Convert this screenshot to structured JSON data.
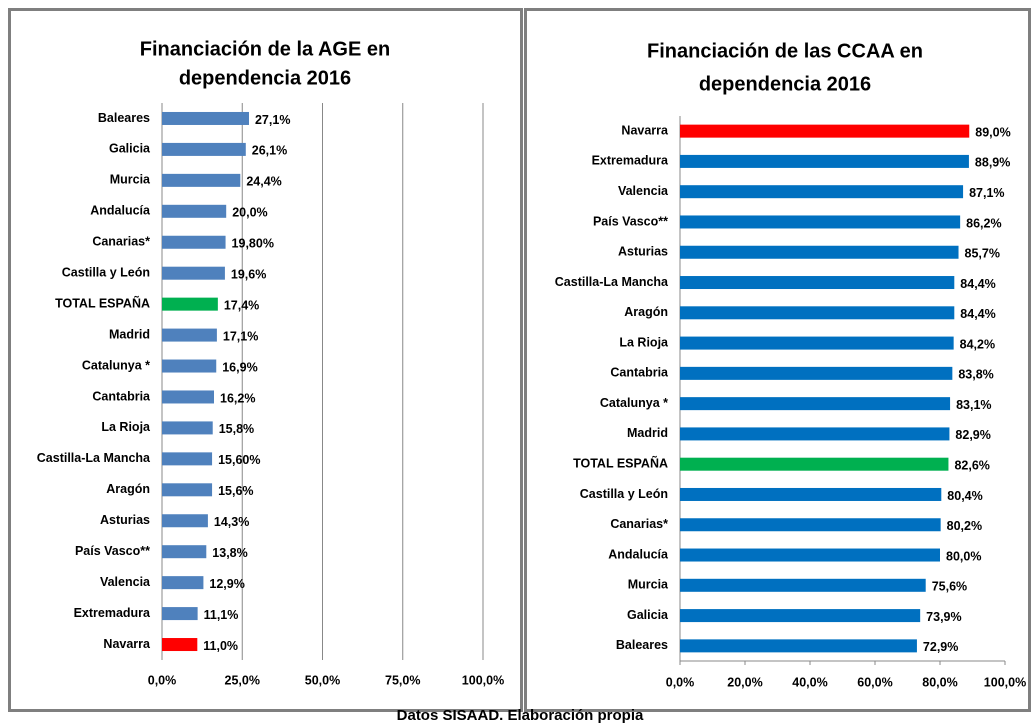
{
  "chart_data": [
    {
      "type": "bar",
      "orientation": "horizontal",
      "title": [
        "Financiación de la  AGE en",
        "dependencia 2016"
      ],
      "categories": [
        "Baleares",
        "Galicia",
        "Murcia",
        "Andalucía",
        "Canarias*",
        "Castilla y León",
        "TOTAL ESPAÑA",
        "Madrid",
        "Catalunya *",
        "Cantabria",
        "La Rioja",
        "Castilla-La Mancha",
        "Aragón",
        "Asturias",
        "País Vasco**",
        "Valencia",
        "Extremadura",
        "Navarra"
      ],
      "values": [
        27.1,
        26.1,
        24.4,
        20.0,
        19.8,
        19.6,
        17.4,
        17.1,
        16.9,
        16.2,
        15.8,
        15.6,
        15.6,
        14.3,
        13.8,
        12.9,
        11.1,
        11.0
      ],
      "value_labels": [
        "27,1%",
        "26,1%",
        "24,4%",
        "20,0%",
        "19,80%",
        "19,6%",
        "17,4%",
        "17,1%",
        "16,9%",
        "16,2%",
        "15,8%",
        "15,60%",
        "15,6%",
        "14,3%",
        "13,8%",
        "12,9%",
        "11,1%",
        "11,0%"
      ],
      "color": "#4f81bd",
      "colors": [
        "#4f81bd",
        "#4f81bd",
        "#4f81bd",
        "#4f81bd",
        "#4f81bd",
        "#4f81bd",
        "#00b050",
        "#4f81bd",
        "#4f81bd",
        "#4f81bd",
        "#4f81bd",
        "#4f81bd",
        "#4f81bd",
        "#4f81bd",
        "#4f81bd",
        "#4f81bd",
        "#4f81bd",
        "#ff0000"
      ],
      "xlim": [
        0,
        100
      ],
      "xticks": [
        {
          "value": 0,
          "label": "0,0%"
        },
        {
          "value": 25,
          "label": "25,0%"
        },
        {
          "value": 50,
          "label": "50,0%"
        },
        {
          "value": 75,
          "label": "75,0%"
        },
        {
          "value": 100,
          "label": "100,0%"
        }
      ],
      "grid": true
    },
    {
      "type": "bar",
      "orientation": "horizontal",
      "title": [
        "Financiación de las CCAA en",
        "dependencia 2016"
      ],
      "categories": [
        "Navarra",
        "Extremadura",
        "Valencia",
        "País Vasco**",
        "Asturias",
        "Castilla-La Mancha",
        "Aragón",
        "La Rioja",
        "Cantabria",
        "Catalunya *",
        "Madrid",
        "TOTAL ESPAÑA",
        "Castilla y León",
        "Canarias*",
        "Andalucía",
        "Murcia",
        "Galicia",
        "Baleares"
      ],
      "values": [
        89.0,
        88.9,
        87.1,
        86.2,
        85.7,
        84.4,
        84.4,
        84.2,
        83.8,
        83.1,
        82.9,
        82.6,
        80.4,
        80.2,
        80.0,
        75.6,
        73.9,
        72.9
      ],
      "value_labels": [
        "89,0%",
        "88,9%",
        "87,1%",
        "86,2%",
        "85,7%",
        "84,4%",
        "84,4%",
        "84,2%",
        "83,8%",
        "83,1%",
        "82,9%",
        "82,6%",
        "80,4%",
        "80,2%",
        "80,0%",
        "75,6%",
        "73,9%",
        "72,9%"
      ],
      "color": "#0070c0",
      "colors": [
        "#ff0000",
        "#0070c0",
        "#0070c0",
        "#0070c0",
        "#0070c0",
        "#0070c0",
        "#0070c0",
        "#0070c0",
        "#0070c0",
        "#0070c0",
        "#0070c0",
        "#00b050",
        "#0070c0",
        "#0070c0",
        "#0070c0",
        "#0070c0",
        "#0070c0",
        "#0070c0"
      ],
      "xlim": [
        0,
        100
      ],
      "xticks": [
        {
          "value": 0,
          "label": "0,0%"
        },
        {
          "value": 20,
          "label": "20,0%"
        },
        {
          "value": 40,
          "label": "40,0%"
        },
        {
          "value": 60,
          "label": "60,0%"
        },
        {
          "value": 80,
          "label": "80,0%"
        },
        {
          "value": 100,
          "label": "100,0%"
        }
      ],
      "grid": false
    }
  ],
  "caption": "Datos SISAAD. Elaboración propia"
}
